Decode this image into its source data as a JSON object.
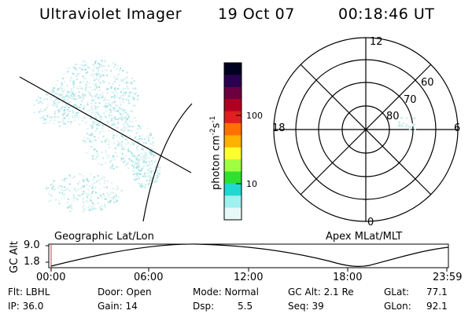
{
  "header": {
    "instrument": "Ultraviolet Imager",
    "date": "19 Oct 07",
    "time": "00:18:46 UT"
  },
  "colorbar": {
    "label": "photon cm",
    "exp1": "-2",
    "mid": "s",
    "exp2": "-1",
    "ticks": [
      "100",
      "10"
    ],
    "colors": [
      "#000020",
      "#2a0050",
      "#6a0040",
      "#b00020",
      "#e02020",
      "#ff7000",
      "#ffb000",
      "#ffff30",
      "#a0ff40",
      "#30e030",
      "#20d8d0",
      "#a0f0f0",
      "#e8f8f8"
    ]
  },
  "polar": {
    "mlt_labels": [
      "12",
      "18",
      "6",
      "0"
    ],
    "lat_labels": [
      "60",
      "70",
      "80"
    ]
  },
  "panel_labels": {
    "left": "Geographic Lat/Lon",
    "right": "Apex MLat/MLT"
  },
  "altitude_plot": {
    "ylabel": "GC Alt",
    "yticks": [
      "9.0",
      "1.8"
    ],
    "xticks": [
      "00:00",
      "06:00",
      "12:00",
      "18:00",
      "23:59"
    ]
  },
  "info": {
    "flt": "Flt: LBHL",
    "ip": "IP: 36.0",
    "door": "Door: Open",
    "gain": "Gain: 14",
    "mode": "Mode: Normal",
    "dsp_label": "Dsp:",
    "dsp_value": "5.5",
    "gcalt": "GC Alt: 2.1 Re",
    "seq": "Seq: 39",
    "glat": "GLat:",
    "glat_value": "77.1",
    "glon": "GLon:",
    "glon_value": "92.1"
  }
}
